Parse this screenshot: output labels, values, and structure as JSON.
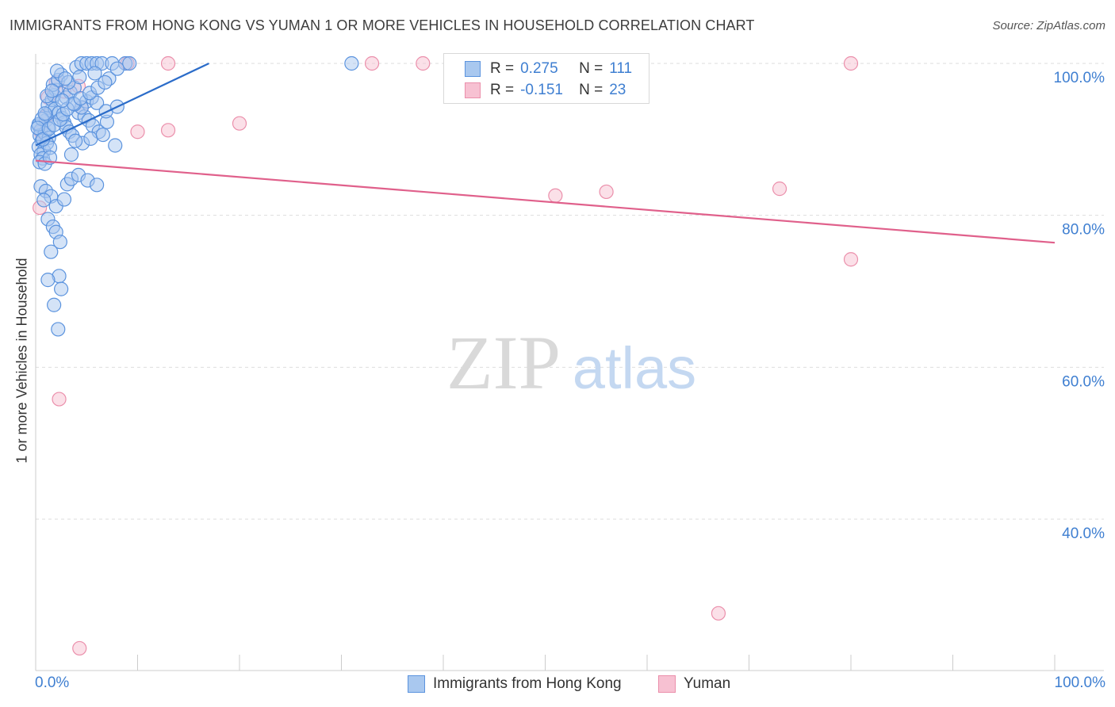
{
  "title": "IMMIGRANTS FROM HONG KONG VS YUMAN 1 OR MORE VEHICLES IN HOUSEHOLD CORRELATION CHART",
  "source": "Source: ZipAtlas.com",
  "watermark": {
    "zip": "ZIP",
    "atlas": "atlas"
  },
  "legend_top": {
    "rows": [
      {
        "r_label": "R =",
        "r_value": "0.275",
        "n_label": "N =",
        "n_value": "111"
      },
      {
        "r_label": "R =",
        "r_value": "-0.151",
        "n_label": "N =",
        "n_value": "23"
      }
    ]
  },
  "legend_bottom": {
    "items": [
      {
        "label": "Immigrants from Hong Kong"
      },
      {
        "label": "Yuman"
      }
    ]
  },
  "colors": {
    "series1_fill": "#a9c8ef",
    "series1_stroke": "#5b93de",
    "series1_line": "#2b6cc9",
    "series2_fill": "#f7c1d2",
    "series2_stroke": "#eb8fab",
    "series2_line": "#e0608b",
    "axis_label": "#3f7fd1",
    "grid": "#dddddd"
  },
  "chart_data": {
    "type": "scatter",
    "title": "IMMIGRANTS FROM HONG KONG VS YUMAN 1 OR MORE VEHICLES IN HOUSEHOLD CORRELATION CHART",
    "xlabel": "",
    "ylabel": "1 or more Vehicles in Household",
    "xlim": [
      0,
      100
    ],
    "ylim": [
      20,
      100
    ],
    "x_tick_labels": [
      "0.0%",
      "100.0%"
    ],
    "y_ticks": [
      {
        "value": 100,
        "label": "100.0%"
      },
      {
        "value": 80,
        "label": "80.0%"
      },
      {
        "value": 60,
        "label": "60.0%"
      },
      {
        "value": 40,
        "label": "40.0%"
      }
    ],
    "series": [
      {
        "name": "Immigrants from Hong Kong",
        "r": 0.275,
        "n": 111,
        "trend": {
          "x": [
            0,
            17
          ],
          "y": [
            89.2,
            100
          ]
        },
        "points": [
          [
            0.3,
            91.8
          ],
          [
            0.5,
            91.2
          ],
          [
            0.4,
            90.5
          ],
          [
            0.6,
            89.8
          ],
          [
            0.3,
            89.0
          ],
          [
            0.8,
            88.5
          ],
          [
            0.5,
            88.0
          ],
          [
            0.7,
            87.5
          ],
          [
            0.4,
            87.0
          ],
          [
            0.9,
            86.8
          ],
          [
            1.0,
            92.5
          ],
          [
            1.2,
            91.5
          ],
          [
            0.9,
            90.8
          ],
          [
            1.3,
            90.2
          ],
          [
            1.1,
            89.5
          ],
          [
            1.4,
            88.9
          ],
          [
            1.0,
            93.2
          ],
          [
            1.5,
            93.8
          ],
          [
            1.2,
            94.5
          ],
          [
            1.6,
            95.2
          ],
          [
            1.8,
            95.8
          ],
          [
            2.0,
            96.5
          ],
          [
            1.7,
            97.2
          ],
          [
            2.2,
            97.8
          ],
          [
            2.5,
            98.5
          ],
          [
            2.1,
            99.0
          ],
          [
            1.9,
            94.0
          ],
          [
            2.3,
            93.5
          ],
          [
            2.6,
            92.8
          ],
          [
            2.8,
            92.2
          ],
          [
            3.0,
            91.6
          ],
          [
            3.3,
            91.0
          ],
          [
            3.6,
            90.5
          ],
          [
            3.0,
            95.5
          ],
          [
            3.4,
            96.2
          ],
          [
            3.8,
            96.8
          ],
          [
            3.2,
            97.5
          ],
          [
            2.9,
            98.0
          ],
          [
            4.0,
            99.5
          ],
          [
            4.5,
            100
          ],
          [
            5.0,
            100
          ],
          [
            5.5,
            100
          ],
          [
            6.0,
            100
          ],
          [
            6.5,
            100
          ],
          [
            7.5,
            100
          ],
          [
            8.8,
            100
          ],
          [
            9.2,
            100
          ],
          [
            31,
            100
          ],
          [
            4.2,
            93.5
          ],
          [
            4.8,
            93.0
          ],
          [
            5.2,
            92.5
          ],
          [
            5.6,
            91.8
          ],
          [
            6.2,
            91.0
          ],
          [
            7.0,
            92.3
          ],
          [
            5.0,
            95.0
          ],
          [
            5.5,
            95.5
          ],
          [
            6.0,
            94.8
          ],
          [
            4.5,
            94.2
          ],
          [
            3.8,
            94.6
          ],
          [
            4.3,
            98.2
          ],
          [
            5.8,
            98.7
          ],
          [
            7.2,
            98.0
          ],
          [
            8.0,
            99.3
          ],
          [
            3.5,
            88.0
          ],
          [
            4.6,
            89.5
          ],
          [
            5.4,
            90.1
          ],
          [
            6.6,
            90.6
          ],
          [
            7.8,
            89.2
          ],
          [
            6.9,
            93.7
          ],
          [
            8.0,
            94.3
          ],
          [
            0.5,
            83.8
          ],
          [
            1.0,
            83.2
          ],
          [
            1.5,
            82.5
          ],
          [
            0.8,
            82.0
          ],
          [
            2.0,
            81.2
          ],
          [
            2.8,
            82.1
          ],
          [
            3.1,
            84.1
          ],
          [
            3.5,
            84.8
          ],
          [
            4.2,
            85.3
          ],
          [
            5.1,
            84.6
          ],
          [
            6.0,
            84.0
          ],
          [
            1.2,
            79.5
          ],
          [
            1.7,
            78.5
          ],
          [
            2.0,
            77.8
          ],
          [
            2.4,
            76.5
          ],
          [
            1.5,
            75.2
          ],
          [
            2.3,
            72.0
          ],
          [
            1.2,
            71.5
          ],
          [
            2.5,
            70.3
          ],
          [
            1.8,
            68.2
          ],
          [
            2.2,
            65.0
          ],
          [
            0.3,
            92.0
          ],
          [
            0.6,
            92.7
          ],
          [
            0.9,
            93.4
          ],
          [
            0.2,
            91.5
          ],
          [
            0.7,
            90.0
          ],
          [
            1.3,
            91.4
          ],
          [
            1.8,
            91.9
          ],
          [
            2.4,
            92.6
          ],
          [
            2.7,
            93.3
          ],
          [
            3.1,
            94.0
          ],
          [
            3.7,
            94.7
          ],
          [
            4.4,
            95.4
          ],
          [
            5.3,
            96.1
          ],
          [
            6.1,
            96.8
          ],
          [
            6.8,
            97.5
          ],
          [
            1.1,
            95.7
          ],
          [
            1.6,
            96.4
          ],
          [
            2.6,
            95.1
          ],
          [
            3.9,
            89.8
          ],
          [
            1.4,
            87.6
          ]
        ]
      },
      {
        "name": "Yuman",
        "r": -0.151,
        "n": 23,
        "trend": {
          "x": [
            0,
            100
          ],
          "y": [
            87.2,
            76.4
          ]
        },
        "points": [
          [
            0.4,
            81.0
          ],
          [
            1.2,
            95.5
          ],
          [
            1.0,
            93.0
          ],
          [
            2.0,
            97.5
          ],
          [
            2.8,
            96.3
          ],
          [
            4.2,
            97.0
          ],
          [
            4.5,
            94.2
          ],
          [
            0.5,
            91.0
          ],
          [
            9.0,
            100
          ],
          [
            13,
            91.2
          ],
          [
            10,
            91.0
          ],
          [
            13,
            100
          ],
          [
            20,
            92.1
          ],
          [
            33,
            100
          ],
          [
            38,
            100
          ],
          [
            51,
            82.6
          ],
          [
            56,
            83.1
          ],
          [
            73,
            83.5
          ],
          [
            80,
            100
          ],
          [
            80,
            74.2
          ],
          [
            2.3,
            55.8
          ],
          [
            4.3,
            23.0
          ],
          [
            67,
            27.6
          ]
        ]
      }
    ]
  }
}
